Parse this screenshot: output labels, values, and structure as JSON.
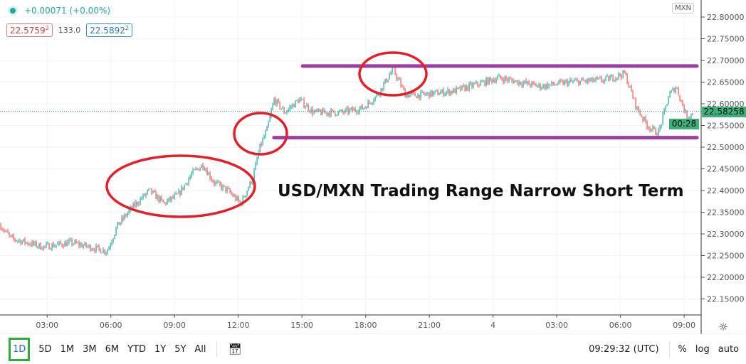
{
  "legend": {
    "change": "+0.00071 (+0.00%)",
    "sell": "22.5759",
    "sell_sup": "2",
    "spread": "133.0",
    "buy": "22.5892",
    "buy_sup": "2",
    "currency": "MXN"
  },
  "annotation_title": "USD/MXN Trading Range Narrow Short Term",
  "price_axis": {
    "current_price": "22.58258",
    "countdown": "00:28"
  },
  "toolbar": {
    "ranges": [
      "1D",
      "5D",
      "1M",
      "3M",
      "6M",
      "YTD",
      "1Y",
      "5Y",
      "All"
    ],
    "active": "1D",
    "clock": "09:29:32 (UTC)",
    "percent": "%",
    "log": "log",
    "auto": "auto"
  },
  "colors": {
    "up": "#26a69a",
    "down": "#ef5350",
    "range_lines": "#9c3fa0",
    "circles": "#e0202a",
    "highlight": "#2eaa3f"
  },
  "chart_data": {
    "type": "candlestick",
    "ylim": [
      22.12,
      22.82
    ],
    "y_ticks": [
      "22.80000",
      "22.75000",
      "22.70000",
      "22.65000",
      "22.60000",
      "22.55000",
      "22.50000",
      "22.45000",
      "22.40000",
      "22.35000",
      "22.30000",
      "22.25000",
      "22.20000",
      "22.15000"
    ],
    "x_ticks": [
      "03:00",
      "06:00",
      "09:00",
      "12:00",
      "15:00",
      "18:00",
      "21:00",
      "4",
      "03:00",
      "06:00",
      "09:00"
    ],
    "grid": true,
    "close_path": [
      {
        "day": 3,
        "time": "00:47",
        "price": 22.32
      },
      {
        "day": 3,
        "time": "01:17",
        "price": 22.29
      },
      {
        "day": 3,
        "time": "02:48",
        "price": 22.27
      },
      {
        "day": 3,
        "time": "04:08",
        "price": 22.28
      },
      {
        "day": 3,
        "time": "05:49",
        "price": 22.26
      },
      {
        "day": 3,
        "time": "06:19",
        "price": 22.32
      },
      {
        "day": 3,
        "time": "06:59",
        "price": 22.36
      },
      {
        "day": 3,
        "time": "07:49",
        "price": 22.4
      },
      {
        "day": 3,
        "time": "08:30",
        "price": 22.37
      },
      {
        "day": 3,
        "time": "09:10",
        "price": 22.39
      },
      {
        "day": 3,
        "time": "09:50",
        "price": 22.44
      },
      {
        "day": 3,
        "time": "10:20",
        "price": 22.46
      },
      {
        "day": 3,
        "time": "10:50",
        "price": 22.42
      },
      {
        "day": 3,
        "time": "11:30",
        "price": 22.4
      },
      {
        "day": 3,
        "time": "12:07",
        "price": 22.37
      },
      {
        "day": 3,
        "time": "12:41",
        "price": 22.43
      },
      {
        "day": 3,
        "time": "13:01",
        "price": 22.5
      },
      {
        "day": 3,
        "time": "13:21",
        "price": 22.54
      },
      {
        "day": 3,
        "time": "13:41",
        "price": 22.61
      },
      {
        "day": 3,
        "time": "14:11",
        "price": 22.58
      },
      {
        "day": 3,
        "time": "14:52",
        "price": 22.61
      },
      {
        "day": 3,
        "time": "15:32",
        "price": 22.58
      },
      {
        "day": 3,
        "time": "16:52",
        "price": 22.58
      },
      {
        "day": 3,
        "time": "17:52",
        "price": 22.59
      },
      {
        "day": 3,
        "time": "18:33",
        "price": 22.62
      },
      {
        "day": 3,
        "time": "19:17",
        "price": 22.68
      },
      {
        "day": 3,
        "time": "19:53",
        "price": 22.62
      },
      {
        "day": 3,
        "time": "20:33",
        "price": 22.62
      },
      {
        "day": 3,
        "time": "22:13",
        "price": 22.63
      },
      {
        "day": 4,
        "time": "00:15",
        "price": 22.66
      },
      {
        "day": 4,
        "time": "02:15",
        "price": 22.64
      },
      {
        "day": 4,
        "time": "03:35",
        "price": 22.65
      },
      {
        "day": 4,
        "time": "05:16",
        "price": 22.655
      },
      {
        "day": 4,
        "time": "06:12",
        "price": 22.67
      },
      {
        "day": 4,
        "time": "06:46",
        "price": 22.59
      },
      {
        "day": 4,
        "time": "07:16",
        "price": 22.55
      },
      {
        "day": 4,
        "time": "07:46",
        "price": 22.53
      },
      {
        "day": 4,
        "time": "08:17",
        "price": 22.62
      },
      {
        "day": 4,
        "time": "08:37",
        "price": 22.64
      },
      {
        "day": 4,
        "time": "09:07",
        "price": 22.57
      },
      {
        "day": 4,
        "time": "09:27",
        "price": 22.58
      }
    ],
    "range_lines": [
      {
        "price": 22.687,
        "from": {
          "day": 3,
          "time": "15:02"
        }
      },
      {
        "price": 22.522,
        "from": {
          "day": 3,
          "time": "13:41"
        }
      }
    ],
    "current_price": 22.58258
  }
}
